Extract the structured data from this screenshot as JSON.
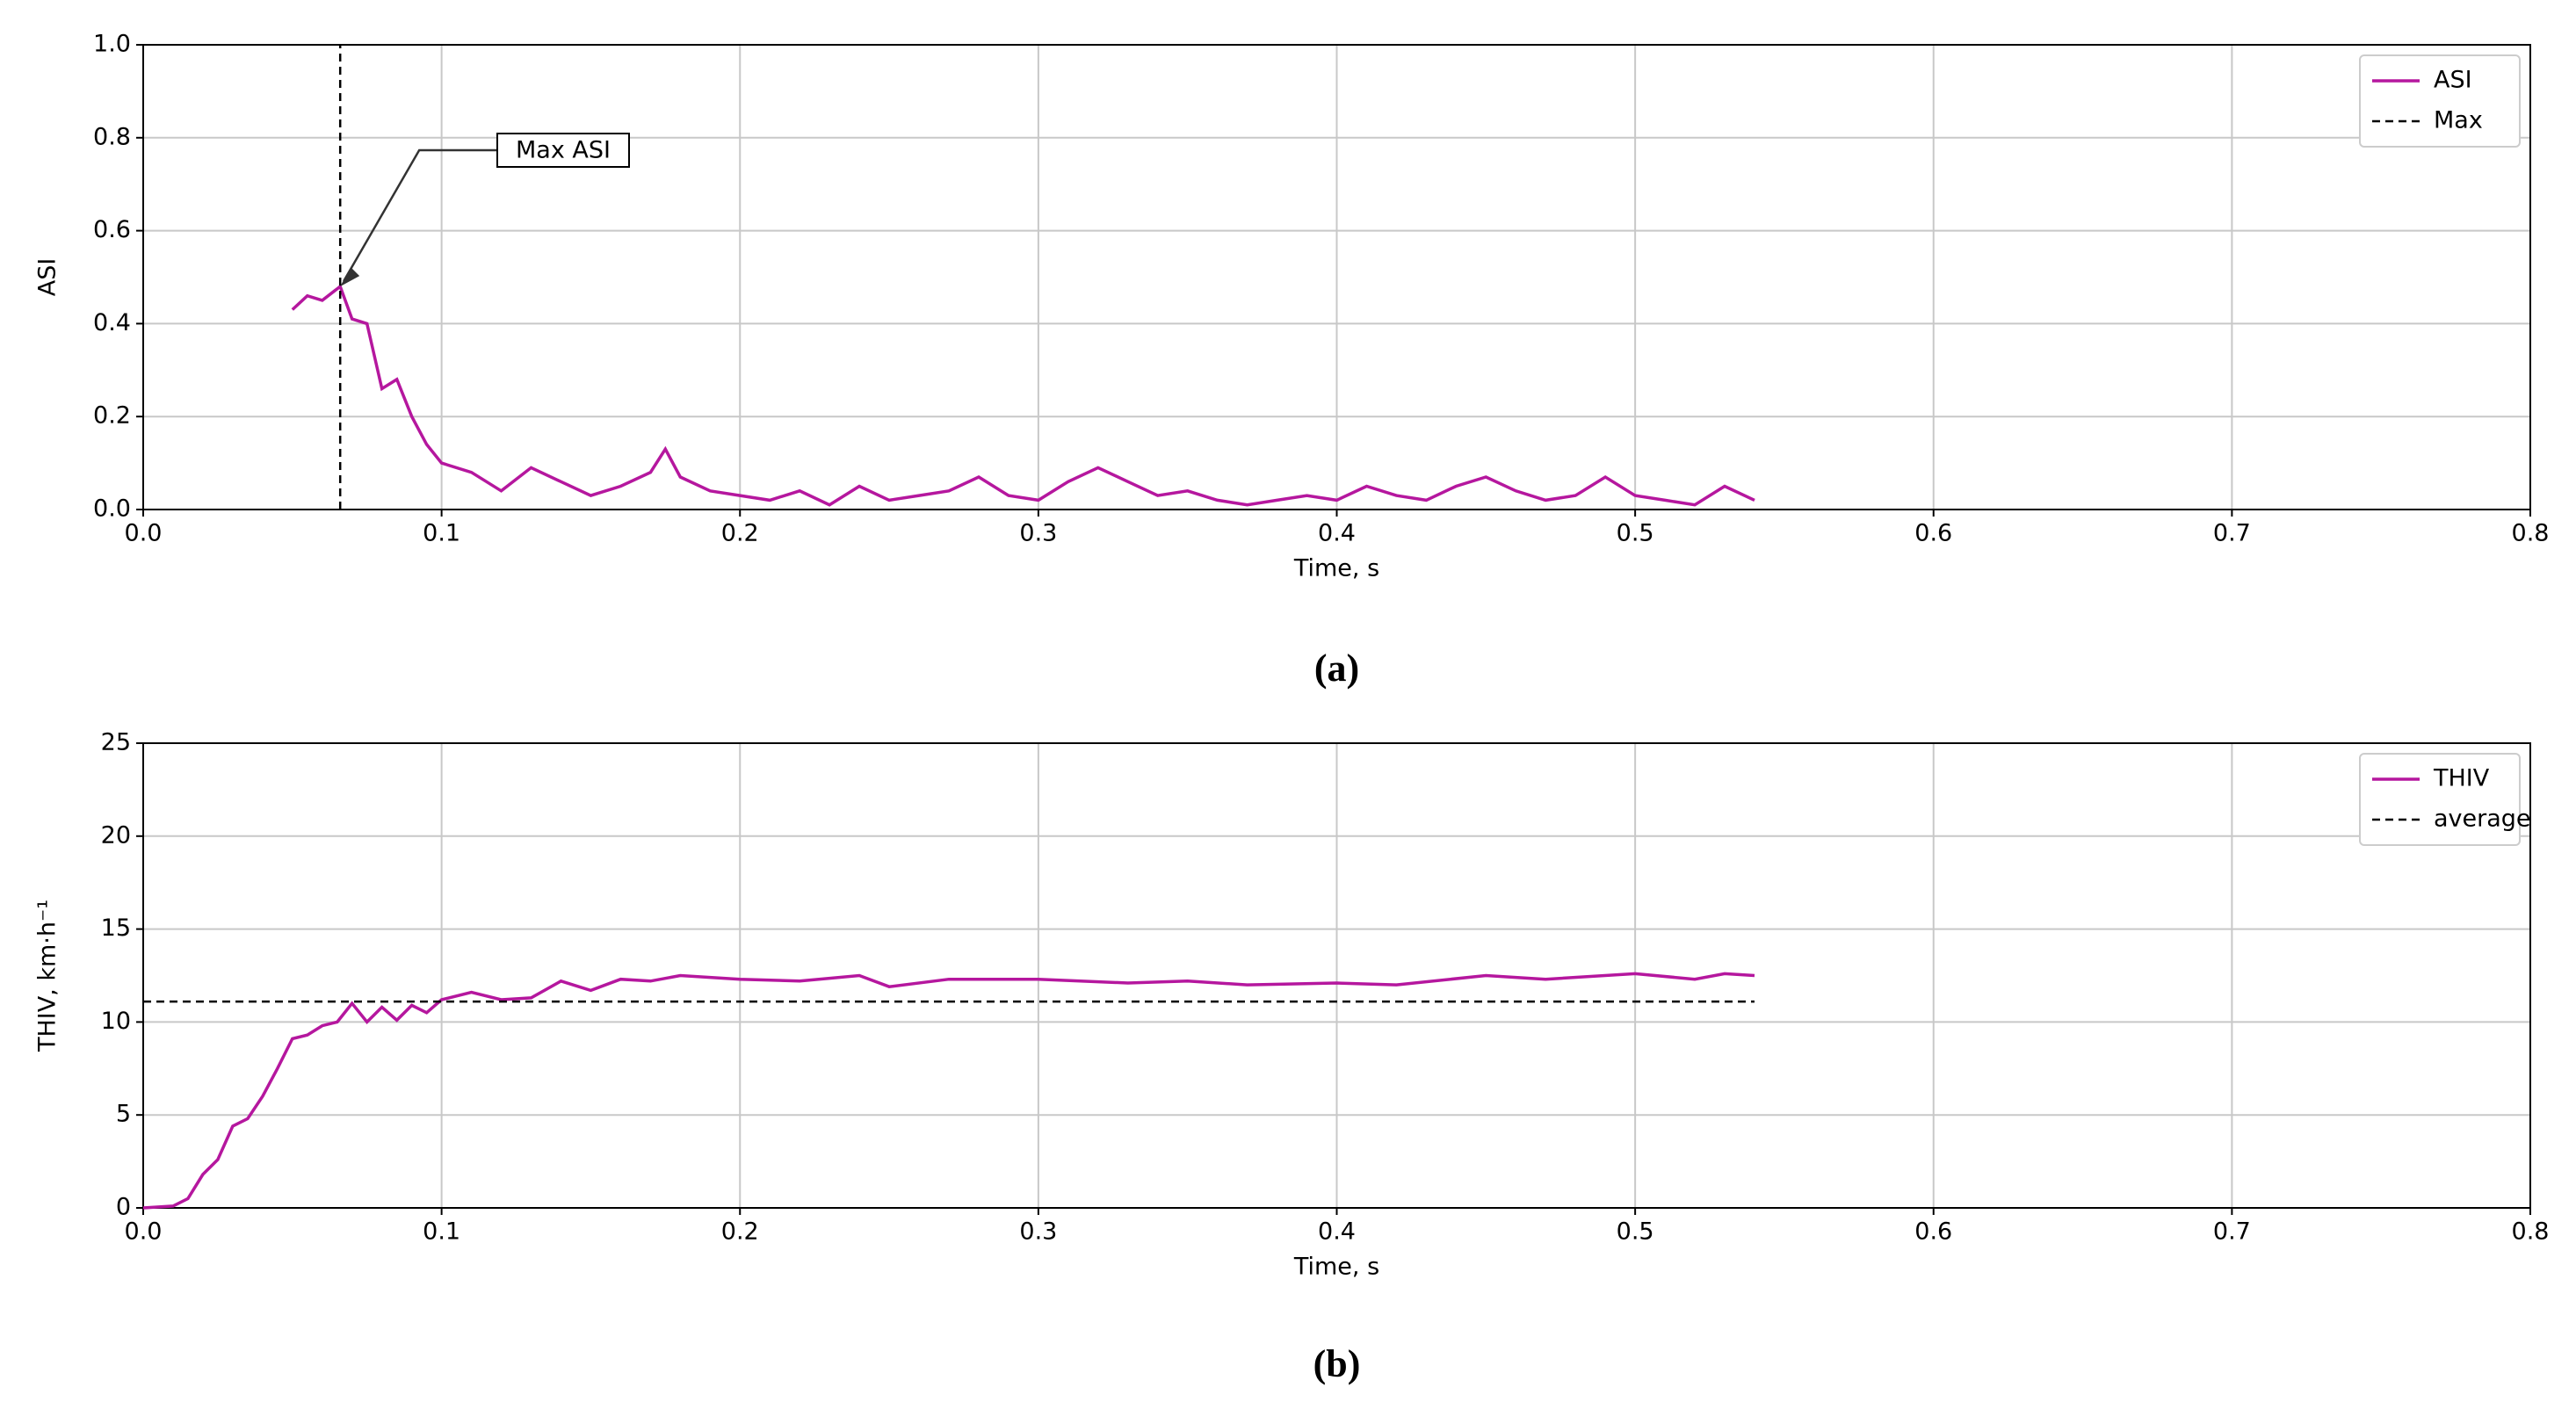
{
  "chart_data": [
    {
      "type": "line",
      "caption": "(a)",
      "x_label": "Time, s",
      "y_label": "ASI",
      "xlim": [
        0,
        0.8
      ],
      "ylim": [
        0,
        1
      ],
      "xticks": [
        {
          "value": 0,
          "label": "0.0"
        },
        0.1,
        0.2,
        0.3,
        0.4,
        0.5,
        0.6,
        0.7,
        0.8
      ],
      "yticks": [
        {
          "value": 0,
          "label": "0.0"
        },
        0.2,
        0.4,
        0.6,
        0.8,
        {
          "value": 1,
          "label": "1.0"
        }
      ],
      "grid": true,
      "legend": "upper right",
      "annotation": {
        "text": "Max ASI",
        "x": 0.066,
        "y": 0.48
      },
      "series": [
        {
          "name": "ASI",
          "color": "#b5179e",
          "dashed": false,
          "x": [
            0.05,
            0.055,
            0.06,
            0.066,
            0.07,
            0.075,
            0.08,
            0.085,
            0.09,
            0.095,
            0.1,
            0.11,
            0.12,
            0.13,
            0.14,
            0.15,
            0.16,
            0.17,
            0.175,
            0.18,
            0.19,
            0.2,
            0.21,
            0.22,
            0.23,
            0.24,
            0.25,
            0.26,
            0.27,
            0.28,
            0.29,
            0.3,
            0.31,
            0.32,
            0.33,
            0.34,
            0.35,
            0.36,
            0.37,
            0.38,
            0.39,
            0.4,
            0.41,
            0.42,
            0.43,
            0.44,
            0.45,
            0.46,
            0.47,
            0.48,
            0.49,
            0.5,
            0.51,
            0.52,
            0.53,
            0.54
          ],
          "values": [
            0.43,
            0.46,
            0.45,
            0.48,
            0.41,
            0.4,
            0.26,
            0.28,
            0.2,
            0.14,
            0.1,
            0.08,
            0.04,
            0.09,
            0.06,
            0.03,
            0.05,
            0.08,
            0.13,
            0.07,
            0.04,
            0.03,
            0.02,
            0.04,
            0.01,
            0.05,
            0.02,
            0.03,
            0.04,
            0.07,
            0.03,
            0.02,
            0.06,
            0.09,
            0.06,
            0.03,
            0.04,
            0.02,
            0.01,
            0.02,
            0.03,
            0.02,
            0.05,
            0.03,
            0.02,
            0.05,
            0.07,
            0.04,
            0.02,
            0.03,
            0.07,
            0.03,
            0.02,
            0.01,
            0.05,
            0.02
          ]
        },
        {
          "name": "Max",
          "color": "#000000",
          "dashed": true,
          "x": [
            0.066,
            0.066
          ],
          "values": [
            0,
            1
          ]
        }
      ]
    },
    {
      "type": "line",
      "caption": "(b)",
      "x_label": "Time, s",
      "y_label": "THIV, km·h⁻¹",
      "xlim": [
        0,
        0.8
      ],
      "ylim": [
        0,
        25
      ],
      "xticks": [
        {
          "value": 0,
          "label": "0.0"
        },
        0.1,
        0.2,
        0.3,
        0.4,
        0.5,
        0.6,
        0.7,
        0.8
      ],
      "yticks": [
        0,
        5,
        10,
        15,
        20,
        25
      ],
      "grid": true,
      "legend": "upper right",
      "series": [
        {
          "name": "THIV",
          "color": "#b5179e",
          "dashed": false,
          "x": [
            0,
            0.01,
            0.015,
            0.02,
            0.025,
            0.03,
            0.035,
            0.04,
            0.045,
            0.05,
            0.055,
            0.06,
            0.065,
            0.07,
            0.075,
            0.08,
            0.085,
            0.09,
            0.095,
            0.1,
            0.11,
            0.12,
            0.13,
            0.14,
            0.15,
            0.16,
            0.17,
            0.18,
            0.2,
            0.22,
            0.24,
            0.25,
            0.27,
            0.3,
            0.33,
            0.35,
            0.37,
            0.4,
            0.42,
            0.45,
            0.47,
            0.5,
            0.52,
            0.53,
            0.54
          ],
          "values": [
            0,
            0.1,
            0.5,
            1.8,
            2.6,
            4.4,
            4.8,
            6.0,
            7.5,
            9.1,
            9.3,
            9.8,
            10.0,
            11.0,
            10.0,
            10.8,
            10.1,
            10.9,
            10.5,
            11.2,
            11.6,
            11.2,
            11.3,
            12.2,
            11.7,
            12.3,
            12.2,
            12.5,
            12.3,
            12.2,
            12.5,
            11.9,
            12.3,
            12.3,
            12.1,
            12.2,
            12.0,
            12.1,
            12.0,
            12.5,
            12.3,
            12.6,
            12.3,
            12.6,
            12.5
          ]
        },
        {
          "name": "average",
          "color": "#000000",
          "dashed": true,
          "x": [
            0,
            0.54
          ],
          "values": [
            11.1,
            11.1
          ]
        }
      ]
    }
  ]
}
